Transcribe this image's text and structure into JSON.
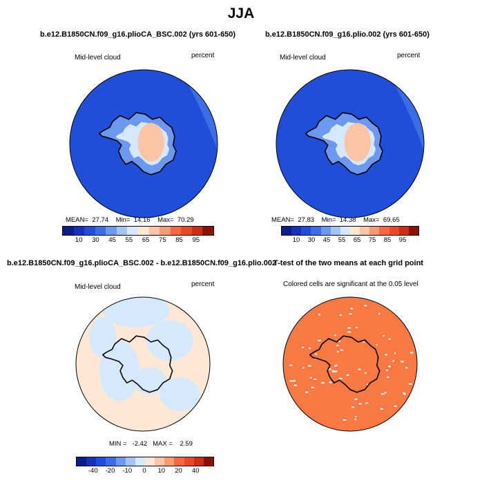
{
  "title": "JJA",
  "panels": [
    {
      "title": "b.e12.B1850CN.f09_g16.plioCA_BSC.002 (yrs 601-650)",
      "left_label": "Mid-level cloud",
      "right_label": "percent",
      "stats": {
        "mean_label": "MEAN=",
        "mean": "27.74",
        "min_label": "Min=",
        "min": "14.16",
        "max_label": "Max=",
        "max": "70.29"
      },
      "colorbar_ticks": [
        "10",
        "30",
        "45",
        "55",
        "65",
        "75",
        "85",
        "95"
      ]
    },
    {
      "title": "b.e12.B1850CN.f09_g16.plio.002 (yrs 601-650)",
      "left_label": "Mid-level cloud",
      "right_label": "percent",
      "stats": {
        "mean_label": "MEAN=",
        "mean": "27.83",
        "min_label": "Min=",
        "min": "14.38",
        "max_label": "Max=",
        "max": "69.65"
      },
      "colorbar_ticks": [
        "10",
        "30",
        "45",
        "55",
        "65",
        "75",
        "85",
        "95"
      ]
    },
    {
      "title": "b.e12.B1850CN.f09_g16.plioCA_BSC.002 - b.e12.B1850CN.f09_g16.plio.002",
      "left_label": "Mid-level cloud",
      "right_label": "percent",
      "stats": {
        "min_label": "MIN =",
        "min": "-2.42",
        "max_label": "MAX =",
        "max": "2.59"
      },
      "colorbar_ticks": [
        "-40",
        "-20",
        "-10",
        "0",
        "10",
        "20",
        "40"
      ]
    },
    {
      "title": "T-test of the two means at each grid point",
      "subtitle": "Colored cells are significant at the 0.05 level"
    }
  ],
  "colors": {
    "ocean_blue": "#1f4fd6",
    "pale_blue": "#d6e8fb",
    "pale_peach": "#fde8d6",
    "ttest_orange": "#f77a45",
    "seq_scale": [
      "#0b1c8c",
      "#1432b9",
      "#1f4fd6",
      "#3b6ee6",
      "#6c98ef",
      "#a5c4f6",
      "#d6e8fb",
      "#fde8d6",
      "#fbc4a4",
      "#f89a72",
      "#f5683f",
      "#e84a27",
      "#cc2e15",
      "#8c1206"
    ],
    "div_scale": [
      "#0b1c8c",
      "#1432b9",
      "#1f4fd6",
      "#3b6ee6",
      "#6c98ef",
      "#a5c4f6",
      "#d6e8fb",
      "#fde8d6",
      "#fbc4a4",
      "#f89a72",
      "#f5683f",
      "#e84a27",
      "#cc2e15",
      "#8c1206"
    ]
  }
}
